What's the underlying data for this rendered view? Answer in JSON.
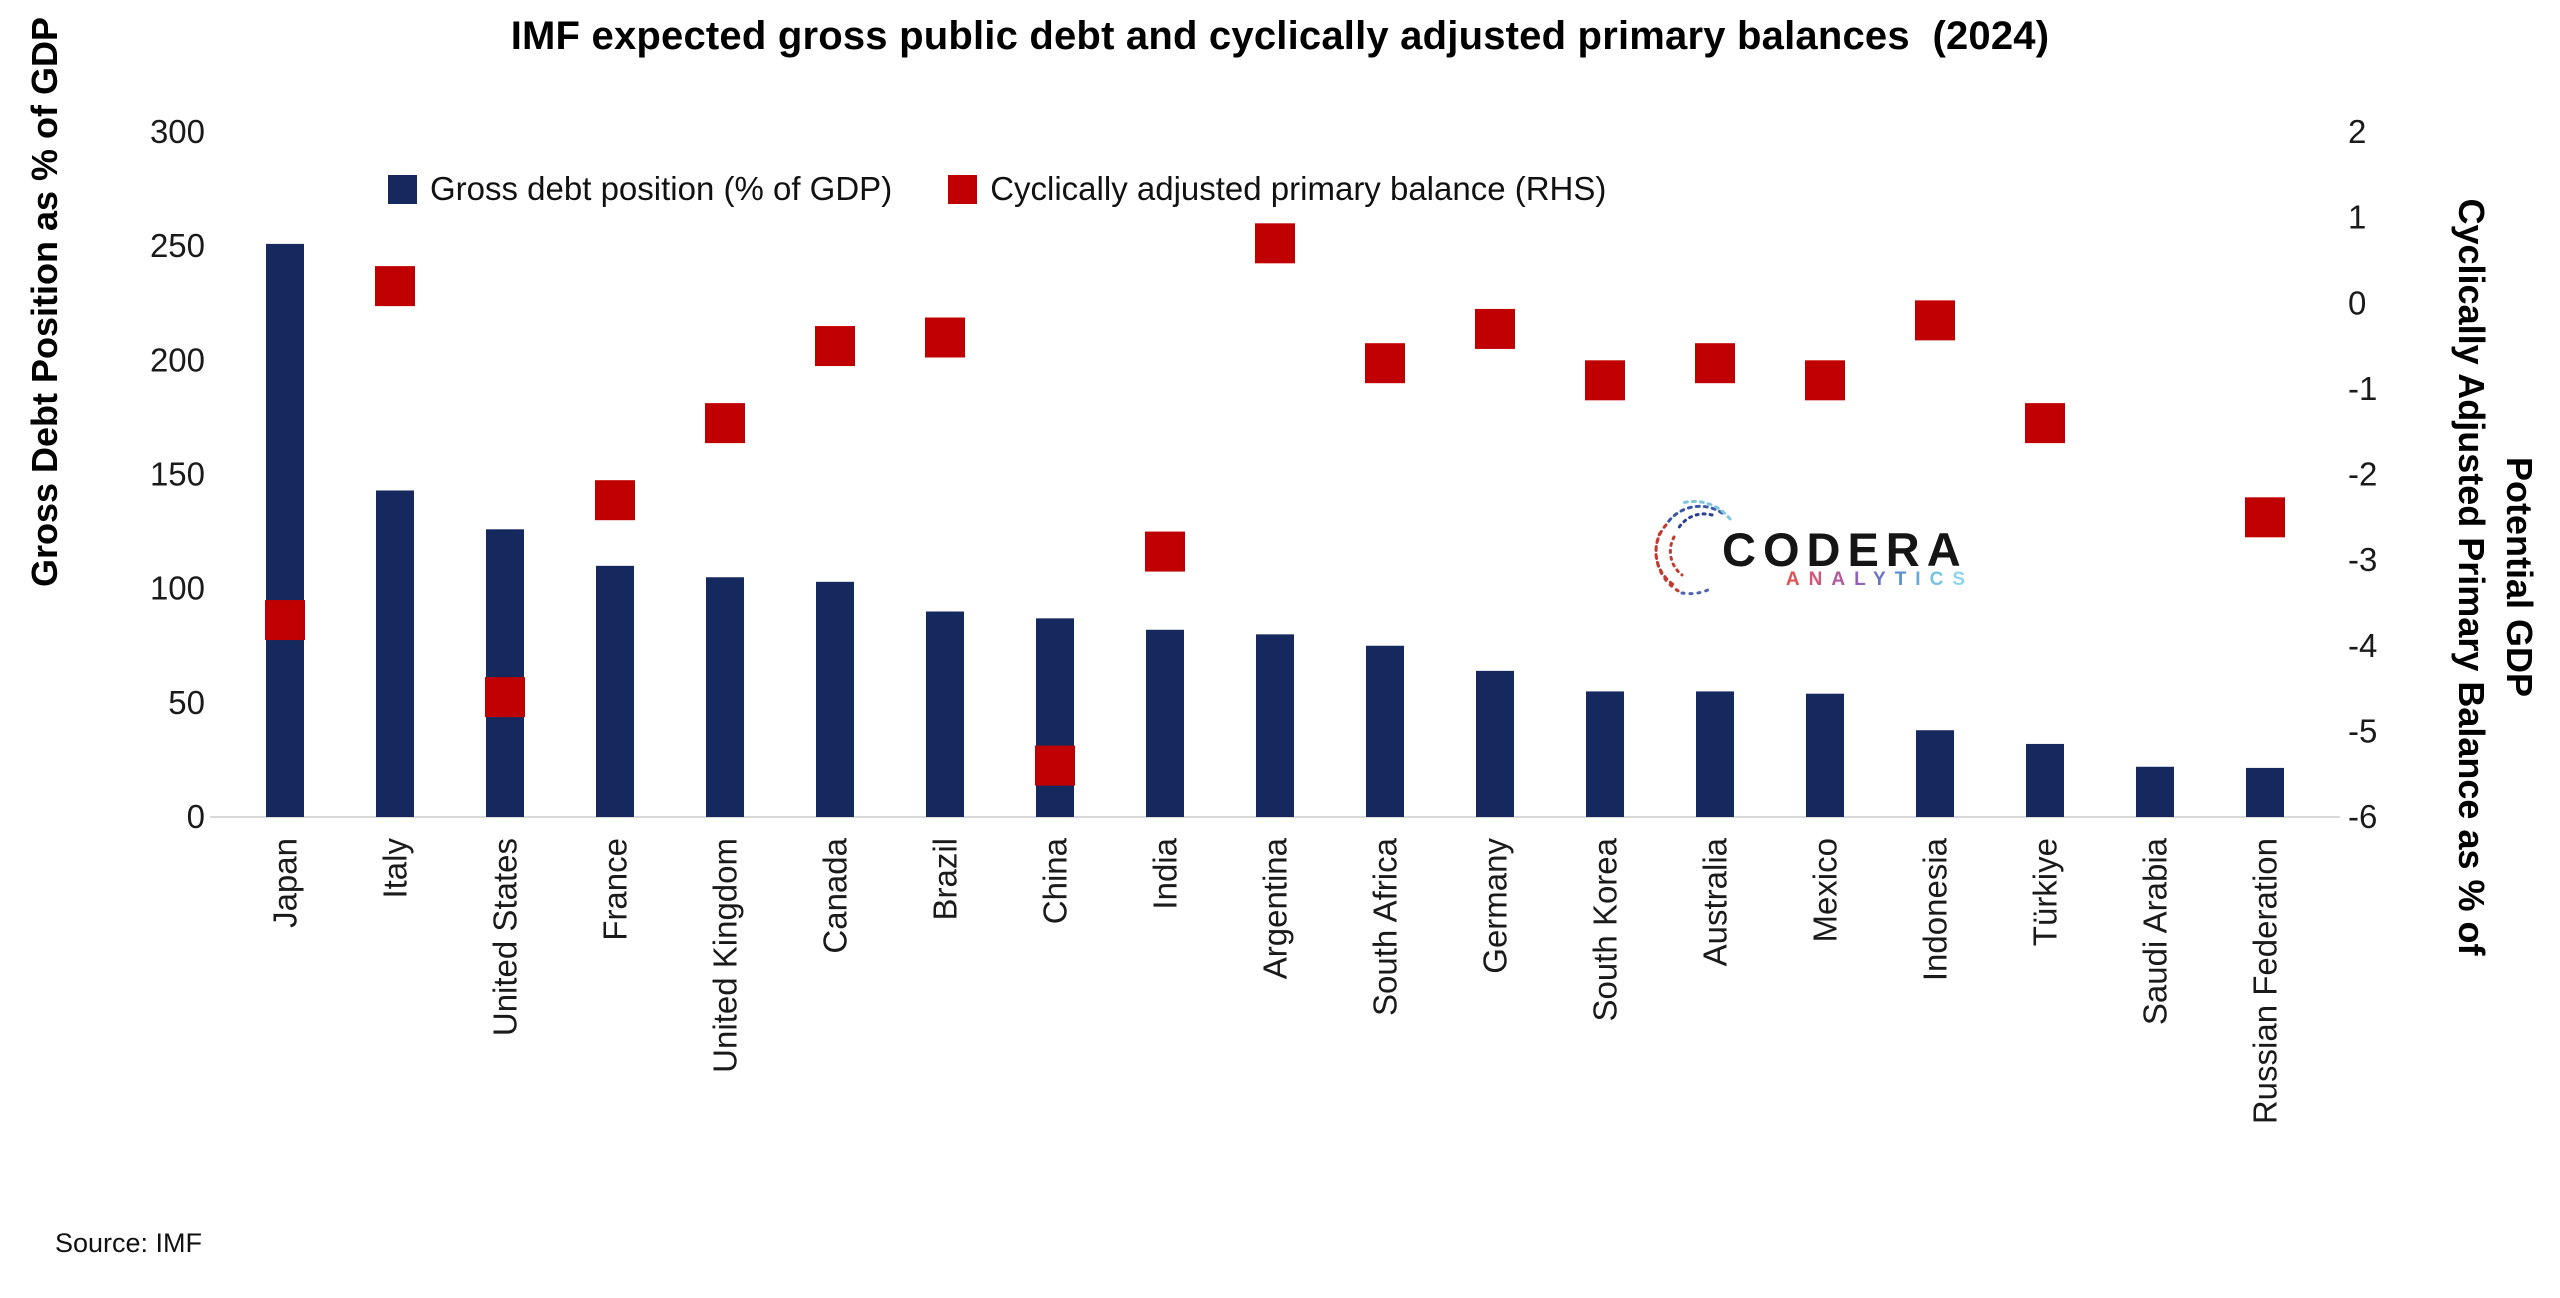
{
  "title": "IMF expected gross public debt and cyclically adjusted primary balances  (2024)",
  "source": "Source: IMF",
  "legend": {
    "debt_label": "Gross debt position (% of GDP)",
    "capb_label": "Cyclically adjusted primary balance (RHS)"
  },
  "logo": {
    "name": "CODERA",
    "sub": "ANALYTICS"
  },
  "colors": {
    "bar": "#16295E",
    "marker": "#C00000",
    "axis_line": "#D9D9D9",
    "text": "#000000"
  },
  "chart_data": {
    "type": "bar",
    "title": "IMF expected gross public debt and cyclically adjusted primary balances (2024)",
    "categories": [
      "Japan",
      "Italy",
      "United States",
      "France",
      "United Kingdom",
      "Canada",
      "Brazil",
      "China",
      "India",
      "Argentina",
      "South Africa",
      "Germany",
      "South Korea",
      "Australia",
      "Mexico",
      "Indonesia",
      "Türkiye",
      "Saudi Arabia",
      "Russian Federation"
    ],
    "series": [
      {
        "name": "Gross debt position (% of GDP)",
        "type": "bar",
        "axis": "left",
        "values": [
          251,
          143,
          126,
          110,
          105,
          103,
          90,
          87,
          82,
          80,
          75,
          64,
          55,
          55,
          54,
          38,
          32,
          22,
          21.5
        ]
      },
      {
        "name": "Cyclically adjusted primary balance (RHS)",
        "type": "scatter",
        "axis": "right",
        "values": [
          -3.7,
          0.2,
          -4.6,
          -2.3,
          -1.4,
          -0.5,
          -0.4,
          -5.4,
          -2.9,
          0.7,
          -0.7,
          -0.3,
          -0.9,
          -0.7,
          -0.9,
          -0.2,
          -1.4,
          null,
          -2.5
        ]
      }
    ],
    "ylabel_left": "Gross Debt Position as % of GDP",
    "ylabel_right_line1": "Cyclically Adjusted Primary Balance as % of",
    "ylabel_right_line2": "Potential GDP",
    "ylim_left": [
      0,
      300
    ],
    "ylim_right": [
      -6,
      2
    ],
    "yticks_left": [
      0,
      50,
      100,
      150,
      200,
      250,
      300
    ],
    "yticks_right": [
      2,
      1,
      0,
      -1,
      -2,
      -3,
      -4,
      -5,
      -6
    ],
    "grid": false,
    "legend_position": "top"
  }
}
